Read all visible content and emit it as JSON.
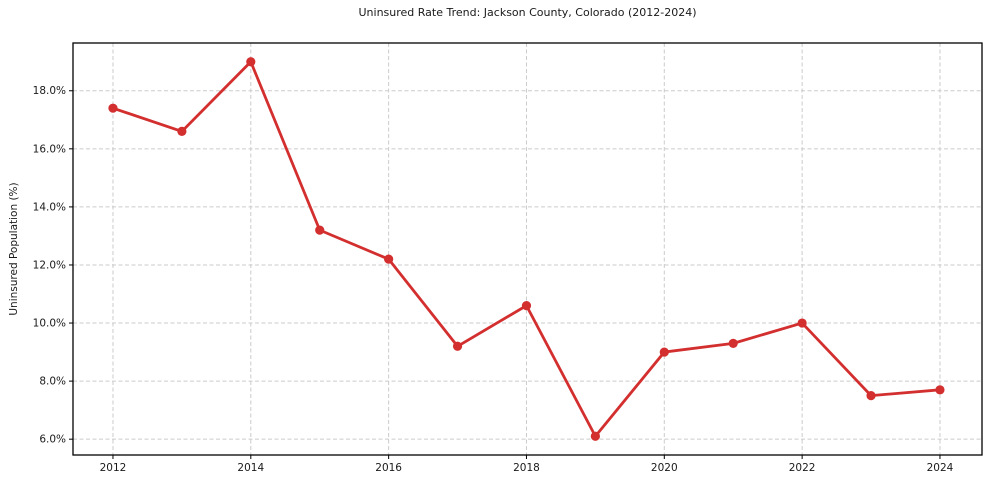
{
  "page": {
    "title": "Uninsured Rate Trend: Jackson County, Colorado (2012-2024)"
  },
  "chart_data": {
    "type": "line",
    "title": "Uninsured Rate Trend: Jackson County, Colorado (2012-2024)",
    "xlabel": "",
    "ylabel": "Uninsured Population (%)",
    "x": [
      2012,
      2013,
      2014,
      2015,
      2016,
      2017,
      2018,
      2019,
      2020,
      2021,
      2022,
      2023,
      2024
    ],
    "y": [
      17.4,
      16.6,
      19.0,
      13.2,
      12.2,
      9.2,
      10.6,
      6.1,
      9.0,
      9.3,
      10.0,
      7.5,
      7.7
    ],
    "xticks": [
      2012,
      2014,
      2016,
      2018,
      2020,
      2022,
      2024
    ],
    "yticks": [
      6.0,
      8.0,
      10.0,
      12.0,
      14.0,
      16.0,
      18.0
    ],
    "ytick_format": "one-decimal-percent",
    "xlim": [
      2011.42,
      2024.61
    ],
    "ylim": [
      5.455,
      19.645
    ],
    "grid": true,
    "grid_style": "dashed",
    "legend": false,
    "colors": {
      "line": "#d32f2f",
      "marker": "#d32f2f",
      "grid": "#cbcbcb",
      "frame": "#000000",
      "text": "#1a1a1a",
      "background": "#ffffff"
    }
  }
}
